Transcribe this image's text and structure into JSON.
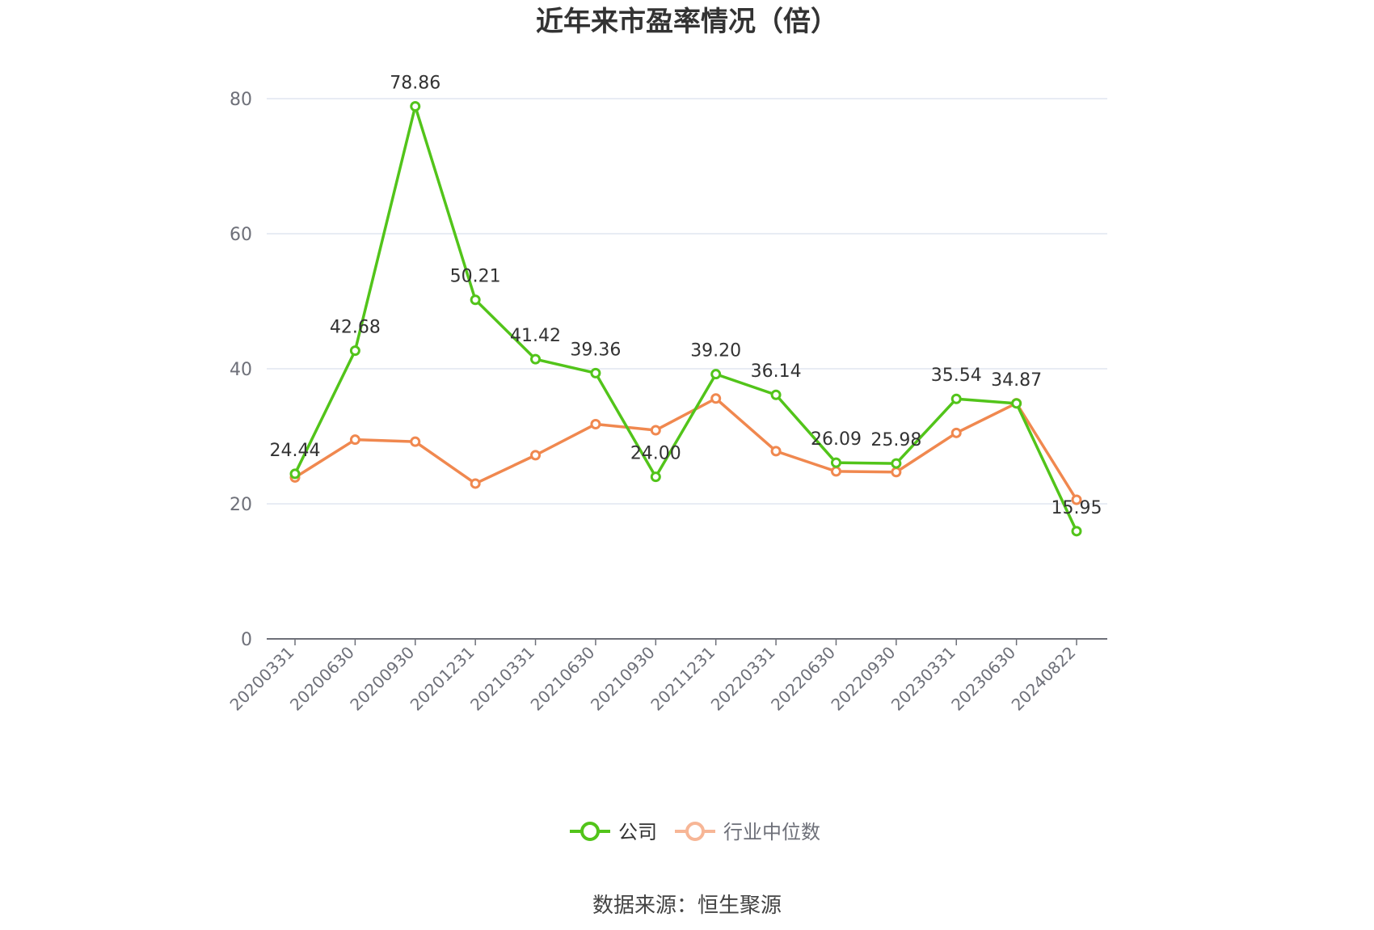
{
  "chart_data": {
    "type": "line",
    "title": "近年来市盈率情况（倍）",
    "categories": [
      "20200331",
      "20200630",
      "20200930",
      "20201231",
      "20210331",
      "20210630",
      "20210930",
      "20211231",
      "20220331",
      "20220630",
      "20220930",
      "20230331",
      "20230630",
      "20240822"
    ],
    "ylim": [
      0,
      80
    ],
    "yticks": [
      0,
      20,
      40,
      60,
      80
    ],
    "grid": true,
    "legend_position": "bottom",
    "series": [
      {
        "name": "公司",
        "color": "#52c41a",
        "values": [
          24.44,
          42.68,
          78.86,
          50.21,
          41.42,
          39.36,
          24.0,
          39.2,
          36.14,
          26.09,
          25.98,
          35.54,
          34.87,
          15.95
        ],
        "labels": [
          "24.44",
          "42.68",
          "78.86",
          "50.21",
          "41.42",
          "39.36",
          "24.00",
          "39.20",
          "36.14",
          "26.09",
          "25.98",
          "35.54",
          "34.87",
          "15.95"
        ]
      },
      {
        "name": "行业中位数",
        "color": "#f0884f",
        "values": [
          23.9,
          29.5,
          29.2,
          23.0,
          27.2,
          31.8,
          30.9,
          35.6,
          27.8,
          24.8,
          24.7,
          30.5,
          34.9,
          20.6
        ]
      }
    ]
  },
  "source": "数据来源：恒生聚源"
}
